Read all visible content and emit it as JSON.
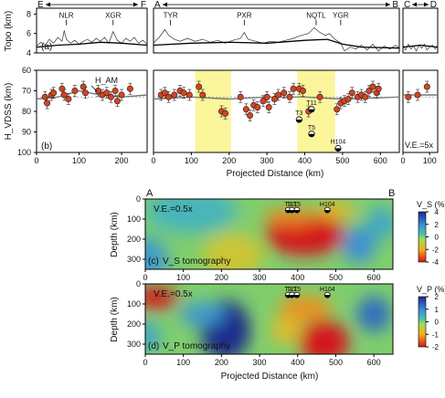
{
  "chart_data": [
    {
      "panel": "(a)",
      "type": "line",
      "ylabel": "Topo (km)",
      "yticks": [
        4,
        6,
        8
      ],
      "ylim": [
        4,
        8.6
      ],
      "profiles": [
        {
          "name": "E–F",
          "ends": [
            "E",
            "F"
          ],
          "xlim": [
            0,
            260
          ],
          "xticks": [
            0,
            100,
            200
          ],
          "labels": [
            {
              "text": "NLR",
              "x": 70,
              "y": 7.6
            },
            {
              "text": "XGR",
              "x": 180,
              "y": 7.6
            }
          ],
          "smooth": [
            [
              0,
              4.6
            ],
            [
              50,
              4.8
            ],
            [
              100,
              4.9
            ],
            [
              150,
              5.1
            ],
            [
              200,
              5.0
            ],
            [
              260,
              4.8
            ]
          ],
          "rough": [
            [
              0,
              4.7
            ],
            [
              10,
              5.1
            ],
            [
              20,
              4.8
            ],
            [
              30,
              5.4
            ],
            [
              40,
              5.0
            ],
            [
              50,
              5.6
            ],
            [
              60,
              5.2
            ],
            [
              65,
              6.3
            ],
            [
              70,
              5.4
            ],
            [
              80,
              5.0
            ],
            [
              90,
              5.3
            ],
            [
              100,
              4.9
            ],
            [
              110,
              5.2
            ],
            [
              120,
              5.4
            ],
            [
              130,
              5.1
            ],
            [
              140,
              5.5
            ],
            [
              150,
              5.2
            ],
            [
              160,
              5.6
            ],
            [
              170,
              5.0
            ],
            [
              180,
              6.2
            ],
            [
              190,
              5.3
            ],
            [
              200,
              5.0
            ],
            [
              210,
              5.5
            ],
            [
              220,
              5.2
            ],
            [
              230,
              5.6
            ],
            [
              240,
              5.0
            ],
            [
              250,
              5.3
            ],
            [
              260,
              4.9
            ]
          ]
        },
        {
          "name": "A–B",
          "ends": [
            "A",
            "B"
          ],
          "xlim": [
            0,
            650
          ],
          "xticks": [
            0,
            100,
            200,
            300,
            400,
            500,
            600
          ],
          "labels": [
            {
              "text": "TYR",
              "x": 45,
              "y": 7.6
            },
            {
              "text": "PXR",
              "x": 240,
              "y": 7.6
            },
            {
              "text": "NQTL",
              "x": 430,
              "y": 7.6
            },
            {
              "text": "YGR",
              "x": 495,
              "y": 7.6
            }
          ],
          "smooth": [
            [
              0,
              4.8
            ],
            [
              100,
              5.0
            ],
            [
              200,
              5.1
            ],
            [
              300,
              5.0
            ],
            [
              400,
              5.3
            ],
            [
              460,
              5.4
            ],
            [
              500,
              4.9
            ],
            [
              550,
              4.6
            ],
            [
              650,
              4.5
            ]
          ],
          "rough": [
            [
              0,
              5.0
            ],
            [
              15,
              5.6
            ],
            [
              30,
              6.4
            ],
            [
              40,
              5.8
            ],
            [
              55,
              5.4
            ],
            [
              70,
              5.2
            ],
            [
              90,
              5.5
            ],
            [
              110,
              5.2
            ],
            [
              130,
              5.4
            ],
            [
              150,
              5.1
            ],
            [
              170,
              5.3
            ],
            [
              190,
              5.0
            ],
            [
              210,
              5.3
            ],
            [
              230,
              5.5
            ],
            [
              240,
              6.1
            ],
            [
              250,
              5.4
            ],
            [
              270,
              5.2
            ],
            [
              290,
              5.0
            ],
            [
              310,
              5.2
            ],
            [
              330,
              5.1
            ],
            [
              350,
              5.3
            ],
            [
              370,
              5.5
            ],
            [
              390,
              5.8
            ],
            [
              410,
              6.0
            ],
            [
              425,
              6.6
            ],
            [
              440,
              6.1
            ],
            [
              455,
              5.8
            ],
            [
              465,
              6.0
            ],
            [
              480,
              5.4
            ],
            [
              495,
              5.0
            ],
            [
              505,
              4.2
            ],
            [
              520,
              4.6
            ],
            [
              535,
              4.4
            ],
            [
              550,
              4.8
            ],
            [
              565,
              4.3
            ],
            [
              580,
              4.9
            ],
            [
              595,
              4.2
            ],
            [
              610,
              4.7
            ],
            [
              625,
              4.4
            ],
            [
              640,
              4.8
            ],
            [
              650,
              4.5
            ]
          ]
        },
        {
          "name": "C–D",
          "ends": [
            "C",
            "D"
          ],
          "xlim": [
            0,
            130
          ],
          "xticks": [
            0,
            100
          ],
          "labels": [],
          "smooth": [
            [
              0,
              4.6
            ],
            [
              65,
              4.8
            ],
            [
              130,
              4.6
            ]
          ],
          "rough": [
            [
              0,
              4.8
            ],
            [
              10,
              4.3
            ],
            [
              20,
              4.9
            ],
            [
              30,
              4.4
            ],
            [
              40,
              4.7
            ],
            [
              50,
              4.2
            ],
            [
              60,
              4.8
            ],
            [
              70,
              4.5
            ],
            [
              80,
              4.9
            ],
            [
              90,
              4.3
            ],
            [
              100,
              4.6
            ],
            [
              110,
              4.8
            ],
            [
              120,
              4.4
            ],
            [
              130,
              4.7
            ]
          ]
        }
      ]
    },
    {
      "panel": "(b)",
      "type": "scatter",
      "ylabel": "H_VDSS (km)",
      "yticks": [
        60,
        70,
        80,
        90,
        100
      ],
      "ylim": [
        100,
        60
      ],
      "annotations": [
        "H_AM",
        "V.E.=5x"
      ],
      "profiles": [
        {
          "name": "E–F",
          "xlim": [
            0,
            260
          ],
          "xticks": [
            0,
            100,
            200
          ],
          "points": [
            [
              20,
              73
            ],
            [
              25,
              76
            ],
            [
              35,
              72
            ],
            [
              40,
              71
            ],
            [
              60,
              69
            ],
            [
              65,
              72
            ],
            [
              75,
              74
            ],
            [
              90,
              70
            ],
            [
              110,
              68
            ],
            [
              115,
              71
            ],
            [
              145,
              70
            ],
            [
              155,
              72
            ],
            [
              165,
              71
            ],
            [
              175,
              73
            ],
            [
              185,
              70
            ],
            [
              190,
              75
            ],
            [
              200,
              72
            ],
            [
              220,
              69
            ]
          ],
          "ham": [
            [
              0,
              74
            ],
            [
              50,
              73
            ],
            [
              100,
              70
            ],
            [
              150,
              72
            ],
            [
              200,
              73
            ],
            [
              260,
              72
            ]
          ]
        },
        {
          "name": "A–B",
          "xlim": [
            0,
            650
          ],
          "xticks": [
            0,
            100,
            200,
            300,
            400,
            500,
            600
          ],
          "highlights": [
            [
              110,
              205
            ],
            [
              380,
              480
            ]
          ],
          "points": [
            [
              20,
              72
            ],
            [
              30,
              71
            ],
            [
              40,
              73
            ],
            [
              55,
              72
            ],
            [
              70,
              70
            ],
            [
              80,
              71
            ],
            [
              95,
              72
            ],
            [
              120,
              68
            ],
            [
              130,
              72
            ],
            [
              180,
              80
            ],
            [
              190,
              81
            ],
            [
              230,
              73
            ],
            [
              245,
              79
            ],
            [
              255,
              82
            ],
            [
              265,
              77
            ],
            [
              275,
              78
            ],
            [
              290,
              75
            ],
            [
              300,
              73
            ],
            [
              305,
              78
            ],
            [
              320,
              74
            ],
            [
              330,
              72
            ],
            [
              345,
              71
            ],
            [
              360,
              73
            ],
            [
              370,
              69
            ],
            [
              385,
              69
            ],
            [
              395,
              70
            ],
            [
              410,
              80
            ],
            [
              440,
              73
            ],
            [
              485,
              79
            ],
            [
              495,
              76
            ],
            [
              505,
              75
            ],
            [
              515,
              74
            ],
            [
              525,
              71
            ],
            [
              540,
              73
            ],
            [
              550,
              72
            ],
            [
              560,
              73
            ],
            [
              570,
              70
            ],
            [
              580,
              68
            ],
            [
              590,
              71
            ],
            [
              595,
              69
            ]
          ],
          "ham": [
            [
              0,
              74
            ],
            [
              100,
              73
            ],
            [
              200,
              74
            ],
            [
              300,
              73
            ],
            [
              400,
              73
            ],
            [
              500,
              74
            ],
            [
              650,
              73
            ]
          ],
          "events": [
            {
              "label": "T3",
              "x": 385,
              "y": 84
            },
            {
              "label": "T11",
              "x": 418,
              "y": 79
            },
            {
              "label": "T5",
              "x": 418,
              "y": 91
            },
            {
              "label": "H104",
              "x": 488,
              "y": 98
            }
          ]
        },
        {
          "name": "C–D",
          "xlim": [
            0,
            130
          ],
          "xticks": [
            0,
            100
          ],
          "points": [
            [
              20,
              73
            ],
            [
              55,
              72
            ],
            [
              90,
              68
            ]
          ],
          "ham": [
            [
              0,
              72
            ],
            [
              130,
              72
            ]
          ]
        }
      ]
    },
    {
      "panel": "(c)",
      "type": "heatmap",
      "xlabel": "Projected Distance (km)",
      "ylabel": "Depth (km)",
      "xlim": [
        0,
        650
      ],
      "ylim": [
        350,
        0
      ],
      "xticks": [
        0,
        100,
        200,
        300,
        400,
        500,
        600
      ],
      "yticks": [
        0,
        100,
        200,
        300
      ],
      "ends": [
        "A",
        "B"
      ],
      "ve": "V.E.=0.5x",
      "subtitle": "V_S tomography",
      "colorbar": {
        "label": "V_S (%)",
        "range": [
          -4,
          4
        ],
        "ticks": [
          4,
          2,
          0,
          -2,
          -4
        ]
      },
      "anomalies": [
        {
          "x": 0,
          "y": 300,
          "rx": 60,
          "ry": 110,
          "value": 1.5
        },
        {
          "x": 120,
          "y": 60,
          "rx": 120,
          "ry": 110,
          "value": 0.8
        },
        {
          "x": 230,
          "y": 280,
          "rx": 80,
          "ry": 110,
          "value": -1.2
        },
        {
          "x": 420,
          "y": 180,
          "rx": 105,
          "ry": 100,
          "value": -4.6
        },
        {
          "x": 380,
          "y": 90,
          "rx": 70,
          "ry": 40,
          "value": -2.5
        },
        {
          "x": 500,
          "y": 60,
          "rx": 50,
          "ry": 40,
          "value": -2.0
        },
        {
          "x": 560,
          "y": 230,
          "rx": 45,
          "ry": 90,
          "value": 1.8
        },
        {
          "x": 620,
          "y": 120,
          "rx": 40,
          "ry": 80,
          "value": 1.2
        }
      ],
      "events": [
        {
          "label": "T3",
          "x": 375,
          "y": 55
        },
        {
          "label": "T11",
          "x": 385,
          "y": 55
        },
        {
          "label": "T5",
          "x": 398,
          "y": 55
        },
        {
          "label": "H104",
          "x": 478,
          "y": 55
        }
      ]
    },
    {
      "panel": "(d)",
      "type": "heatmap",
      "xlabel": "Projected Distance (km)",
      "ylabel": "Depth (km)",
      "xlim": [
        0,
        650
      ],
      "ylim": [
        350,
        0
      ],
      "xticks": [
        0,
        100,
        200,
        300,
        400,
        500,
        600
      ],
      "yticks": [
        0,
        100,
        200,
        300
      ],
      "ends": [
        "A",
        "B"
      ],
      "ve": "V.E.=0.5x",
      "subtitle": "V_P tomography",
      "colorbar": {
        "label": "V_P (%)",
        "range": [
          -2,
          2
        ],
        "ticks": [
          2,
          1,
          0,
          -1,
          -2
        ]
      },
      "anomalies": [
        {
          "x": 25,
          "y": 70,
          "rx": 60,
          "ry": 55,
          "value": -2.6
        },
        {
          "x": 210,
          "y": 230,
          "rx": 65,
          "ry": 150,
          "value": 2.4
        },
        {
          "x": 150,
          "y": 150,
          "rx": 60,
          "ry": 60,
          "value": 0.8
        },
        {
          "x": 470,
          "y": 290,
          "rx": 65,
          "ry": 110,
          "value": -2.8
        },
        {
          "x": 420,
          "y": 120,
          "rx": 70,
          "ry": 60,
          "value": -1.2
        },
        {
          "x": 370,
          "y": 230,
          "rx": 40,
          "ry": 70,
          "value": -0.8
        },
        {
          "x": 600,
          "y": 150,
          "rx": 45,
          "ry": 90,
          "value": 1.3
        },
        {
          "x": 0,
          "y": 260,
          "rx": 40,
          "ry": 80,
          "value": 0.6
        }
      ],
      "events": [
        {
          "label": "T3",
          "x": 375,
          "y": 55
        },
        {
          "label": "T11",
          "x": 385,
          "y": 55
        },
        {
          "label": "T5",
          "x": 398,
          "y": 55
        },
        {
          "label": "H104",
          "x": 478,
          "y": 55
        }
      ]
    }
  ]
}
